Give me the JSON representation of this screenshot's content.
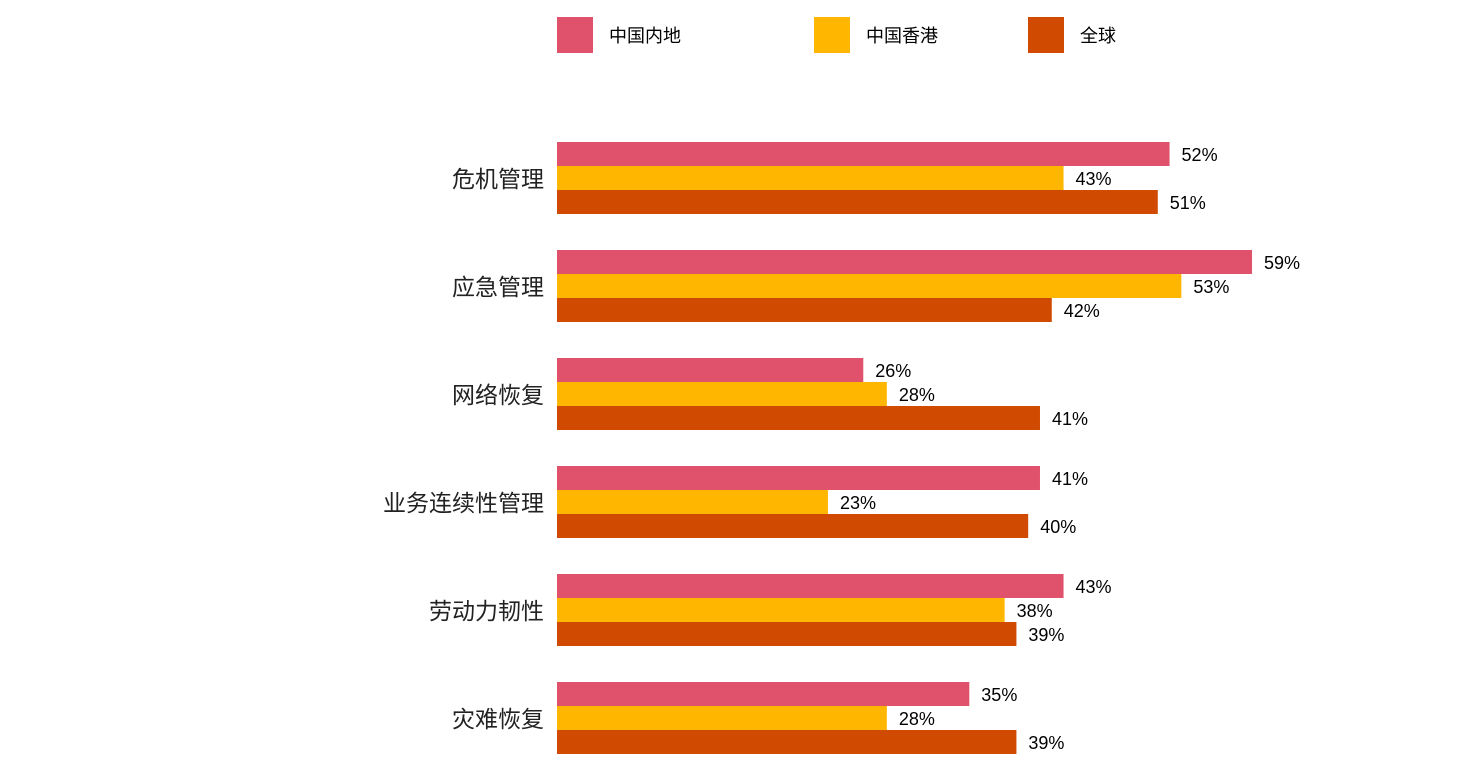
{
  "chart_data": {
    "type": "bar",
    "orientation": "horizontal",
    "categories": [
      "危机管理",
      "应急管理",
      "网络恢复",
      "业务连续性管理",
      "劳动力韧性",
      "灾难恢复"
    ],
    "series": [
      {
        "name": "中国内地",
        "color": "#e0516b",
        "values": [
          52,
          59,
          26,
          41,
          43,
          35
        ]
      },
      {
        "name": "中国香港",
        "color": "#ffb600",
        "values": [
          43,
          53,
          28,
          23,
          38,
          28
        ]
      },
      {
        "name": "全球",
        "color": "#d04a02",
        "values": [
          51,
          42,
          41,
          40,
          39,
          39
        ]
      }
    ],
    "value_suffix": "%",
    "xlim": [
      0,
      60
    ],
    "legend_position": "top",
    "grid": false
  }
}
